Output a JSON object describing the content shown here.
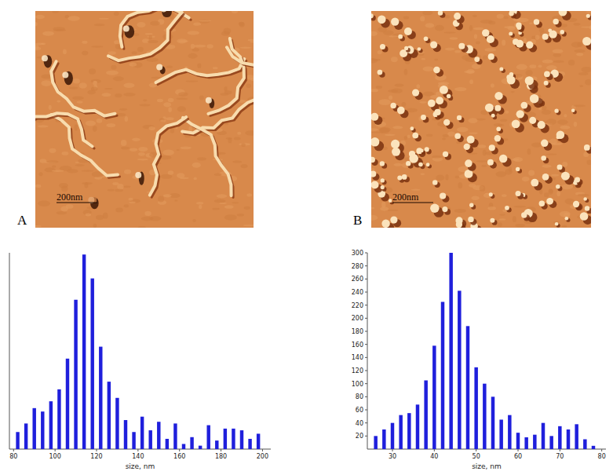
{
  "chart_data": [
    {
      "type": "histogram",
      "bins": [
        80,
        84,
        88,
        92,
        96,
        100,
        104,
        108,
        112,
        116,
        120,
        124,
        128,
        132,
        136,
        140,
        144,
        148,
        152,
        156,
        160,
        164,
        168,
        172,
        176,
        180,
        184,
        188,
        192,
        196,
        200
      ],
      "values": [
        20,
        30,
        48,
        44,
        56,
        70,
        106,
        175,
        228,
        200,
        120,
        79,
        60,
        34,
        20,
        38,
        22,
        32,
        12,
        30,
        6,
        14,
        4,
        28,
        10,
        24,
        24,
        22,
        12,
        18
      ],
      "color": "#1f1fdc",
      "xlim": [
        78,
        204
      ],
      "xticks": [
        80,
        100,
        120,
        140,
        160,
        180,
        200
      ],
      "ylim": [
        0,
        230
      ],
      "x_label": "size, nm",
      "tick_labels": "x"
    },
    {
      "type": "histogram",
      "bins": [
        25,
        27,
        29,
        31,
        33,
        35,
        37,
        39,
        41,
        43,
        45,
        47,
        49,
        51,
        53,
        55,
        57,
        59,
        61,
        63,
        65,
        67,
        69,
        71,
        73,
        75,
        77,
        79
      ],
      "values": [
        20,
        30,
        40,
        52,
        55,
        68,
        105,
        158,
        225,
        300,
        242,
        188,
        125,
        100,
        80,
        45,
        52,
        25,
        18,
        22,
        40,
        20,
        35,
        30,
        38,
        15,
        5
      ],
      "color": "#1f1fdc",
      "xlim": [
        24,
        81
      ],
      "xticks": [
        30,
        40,
        50,
        60,
        70,
        80
      ],
      "ylim": [
        0,
        300
      ],
      "yticks": [
        20,
        40,
        60,
        80,
        100,
        120,
        140,
        160,
        180,
        200,
        220,
        240,
        260,
        280,
        300
      ],
      "x_label": "size, nm"
    }
  ],
  "panels": [
    {
      "label": "A",
      "scale_bar": "200nm"
    },
    {
      "label": "B",
      "scale_bar": "200nm"
    }
  ]
}
